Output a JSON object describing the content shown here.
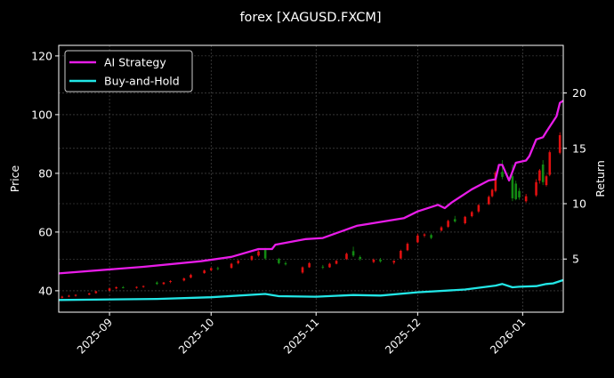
{
  "chart_data": {
    "type": "candlestick-with-lines",
    "title": "forex [XAGUSD.FXCM]",
    "ylabel_left": "Price",
    "ylabel_right": "Return",
    "xlim": [
      "2025-08-17",
      "2026-01-13"
    ],
    "ylim_left": [
      32.7,
      123.6
    ],
    "ylim_right": [
      0.2,
      24.3
    ],
    "x_ticks": [
      "2025-09",
      "2025-10",
      "2025-11",
      "2025-12",
      "2026-01"
    ],
    "x_tick_dates": [
      "2025-09-01",
      "2025-10-01",
      "2025-11-01",
      "2025-12-01",
      "2026-01-01"
    ],
    "y_ticks_left": [
      40,
      60,
      80,
      100,
      120
    ],
    "y_ticks_right": [
      5,
      10,
      15,
      20
    ],
    "grid": true,
    "legend_position": "top-left",
    "colors": {
      "background": "#000000",
      "up": "#e01010",
      "down": "#128a12",
      "ai": "#e81ce8",
      "bh": "#22e6e6",
      "grid": "#555555"
    },
    "candles_columns": [
      "date",
      "open",
      "high",
      "low",
      "close"
    ],
    "candles": [
      [
        "2025-08-18",
        37.6,
        38.3,
        37.4,
        38.0
      ],
      [
        "2025-08-20",
        38.0,
        38.6,
        37.8,
        38.3
      ],
      [
        "2025-08-22",
        38.3,
        38.8,
        38.0,
        38.6
      ],
      [
        "2025-08-26",
        38.7,
        39.3,
        38.5,
        39.1
      ],
      [
        "2025-08-28",
        39.2,
        40.0,
        39.0,
        39.8
      ],
      [
        "2025-09-01",
        40.0,
        41.0,
        39.8,
        40.8
      ],
      [
        "2025-09-03",
        40.8,
        41.5,
        40.5,
        41.2
      ],
      [
        "2025-09-05",
        41.2,
        41.6,
        40.8,
        41.0
      ],
      [
        "2025-09-09",
        41.0,
        41.5,
        40.7,
        41.3
      ],
      [
        "2025-09-11",
        41.3,
        41.8,
        41.0,
        41.6
      ],
      [
        "2025-09-15",
        42.8,
        43.2,
        42.0,
        42.3
      ],
      [
        "2025-09-17",
        42.3,
        43.0,
        42.0,
        42.8
      ],
      [
        "2025-09-19",
        43.0,
        43.6,
        42.6,
        43.3
      ],
      [
        "2025-09-23",
        43.5,
        44.5,
        43.2,
        44.2
      ],
      [
        "2025-09-25",
        44.5,
        45.8,
        44.2,
        45.4
      ],
      [
        "2025-09-29",
        46.0,
        47.2,
        45.8,
        46.9
      ],
      [
        "2025-10-01",
        47.0,
        48.0,
        46.6,
        47.7
      ],
      [
        "2025-10-03",
        47.7,
        48.2,
        47.0,
        47.4
      ],
      [
        "2025-10-07",
        47.8,
        49.5,
        47.5,
        49.2
      ],
      [
        "2025-10-09",
        49.4,
        50.5,
        49.0,
        50.2
      ],
      [
        "2025-10-13",
        50.5,
        52.0,
        50.2,
        51.8
      ],
      [
        "2025-10-15",
        52.0,
        53.8,
        51.6,
        53.4
      ],
      [
        "2025-10-17",
        54.0,
        54.6,
        50.5,
        51.0
      ],
      [
        "2025-10-21",
        50.8,
        51.2,
        49.0,
        49.4
      ],
      [
        "2025-10-23",
        49.4,
        50.0,
        48.6,
        49.0
      ],
      [
        "2025-10-28",
        46.2,
        48.3,
        45.8,
        48.0
      ],
      [
        "2025-10-30",
        48.0,
        49.8,
        47.8,
        49.4
      ],
      [
        "2025-11-03",
        48.2,
        48.8,
        47.4,
        48.0
      ],
      [
        "2025-11-05",
        48.0,
        49.5,
        47.8,
        49.2
      ],
      [
        "2025-11-07",
        49.2,
        50.5,
        49.0,
        50.2
      ],
      [
        "2025-11-10",
        50.8,
        53.0,
        50.5,
        52.6
      ],
      [
        "2025-11-12",
        53.5,
        55.0,
        51.5,
        52.0
      ],
      [
        "2025-11-14",
        51.5,
        52.0,
        50.2,
        50.8
      ],
      [
        "2025-11-18",
        49.8,
        51.0,
        49.4,
        50.6
      ],
      [
        "2025-11-20",
        50.6,
        51.2,
        49.6,
        50.0
      ],
      [
        "2025-11-24",
        49.6,
        50.4,
        49.0,
        50.2
      ],
      [
        "2025-11-26",
        51.0,
        54.0,
        50.8,
        53.6
      ],
      [
        "2025-11-28",
        53.8,
        56.5,
        53.5,
        56.0
      ],
      [
        "2025-12-01",
        56.5,
        59.5,
        56.2,
        58.8
      ],
      [
        "2025-12-03",
        58.8,
        59.6,
        58.2,
        59.2
      ],
      [
        "2025-12-05",
        59.0,
        59.5,
        57.6,
        58.0
      ],
      [
        "2025-12-08",
        60.5,
        62.0,
        60.2,
        61.6
      ],
      [
        "2025-12-10",
        61.8,
        64.2,
        61.4,
        63.8
      ],
      [
        "2025-12-12",
        64.4,
        65.5,
        63.2,
        63.6
      ],
      [
        "2025-12-15",
        63.0,
        65.5,
        62.6,
        65.2
      ],
      [
        "2025-12-17",
        65.4,
        67.2,
        65.0,
        66.8
      ],
      [
        "2025-12-19",
        67.0,
        69.5,
        66.5,
        69.2
      ],
      [
        "2025-12-22",
        69.5,
        72.5,
        69.2,
        72.0
      ],
      [
        "2025-12-23",
        72.2,
        74.8,
        71.8,
        74.4
      ],
      [
        "2025-12-24",
        74.0,
        80.8,
        73.5,
        80.2
      ],
      [
        "2025-12-26",
        80.5,
        84.5,
        78.0,
        78.8
      ],
      [
        "2025-12-29",
        79.0,
        83.0,
        70.5,
        71.5
      ],
      [
        "2025-12-30",
        76.5,
        77.5,
        70.8,
        71.2
      ],
      [
        "2025-12-31",
        74.0,
        75.0,
        71.0,
        71.8
      ],
      [
        "2026-01-02",
        70.5,
        73.0,
        70.0,
        72.2
      ],
      [
        "2026-01-05",
        72.5,
        78.0,
        72.0,
        77.0
      ],
      [
        "2026-01-06",
        77.5,
        81.5,
        76.5,
        81.0
      ],
      [
        "2026-01-07",
        83.0,
        84.5,
        76.0,
        77.0
      ],
      [
        "2026-01-08",
        76.0,
        79.5,
        75.5,
        79.0
      ],
      [
        "2026-01-09",
        79.5,
        87.8,
        79.0,
        87.2
      ],
      [
        "2026-01-12",
        87.0,
        94.0,
        86.5,
        93.0
      ]
    ],
    "series": [
      {
        "name": "AI Strategy",
        "axis": "right",
        "points": [
          [
            "2025-08-17",
            3.7
          ],
          [
            "2025-09-11",
            4.3
          ],
          [
            "2025-09-28",
            4.8
          ],
          [
            "2025-10-07",
            5.2
          ],
          [
            "2025-10-15",
            5.9
          ],
          [
            "2025-10-19",
            5.9
          ],
          [
            "2025-10-20",
            6.3
          ],
          [
            "2025-10-29",
            6.8
          ],
          [
            "2025-11-03",
            6.9
          ],
          [
            "2025-11-13",
            8.0
          ],
          [
            "2025-11-27",
            8.7
          ],
          [
            "2025-12-01",
            9.3
          ],
          [
            "2025-12-07",
            9.9
          ],
          [
            "2025-12-09",
            9.6
          ],
          [
            "2025-12-11",
            10.1
          ],
          [
            "2025-12-17",
            11.3
          ],
          [
            "2025-12-22",
            12.1
          ],
          [
            "2025-12-24",
            12.2
          ],
          [
            "2025-12-25",
            13.5
          ],
          [
            "2025-12-26",
            13.5
          ],
          [
            "2025-12-28",
            12.1
          ],
          [
            "2025-12-30",
            13.7
          ],
          [
            "2026-01-02",
            13.9
          ],
          [
            "2026-01-03",
            14.3
          ],
          [
            "2026-01-05",
            15.8
          ],
          [
            "2026-01-07",
            16.0
          ],
          [
            "2026-01-08",
            16.5
          ],
          [
            "2026-01-11",
            17.9
          ],
          [
            "2026-01-12",
            19.1
          ],
          [
            "2026-01-13",
            19.3
          ]
        ]
      },
      {
        "name": "Buy-and-Hold",
        "axis": "right",
        "points": [
          [
            "2025-08-17",
            1.3
          ],
          [
            "2025-09-15",
            1.4
          ],
          [
            "2025-10-01",
            1.55
          ],
          [
            "2025-10-17",
            1.85
          ],
          [
            "2025-10-21",
            1.65
          ],
          [
            "2025-11-01",
            1.6
          ],
          [
            "2025-11-12",
            1.75
          ],
          [
            "2025-11-20",
            1.7
          ],
          [
            "2025-12-01",
            2.0
          ],
          [
            "2025-12-15",
            2.25
          ],
          [
            "2025-12-24",
            2.6
          ],
          [
            "2025-12-26",
            2.75
          ],
          [
            "2025-12-29",
            2.45
          ],
          [
            "2025-12-31",
            2.5
          ],
          [
            "2026-01-05",
            2.55
          ],
          [
            "2026-01-08",
            2.75
          ],
          [
            "2026-01-10",
            2.8
          ],
          [
            "2026-01-13",
            3.1
          ]
        ]
      }
    ]
  }
}
